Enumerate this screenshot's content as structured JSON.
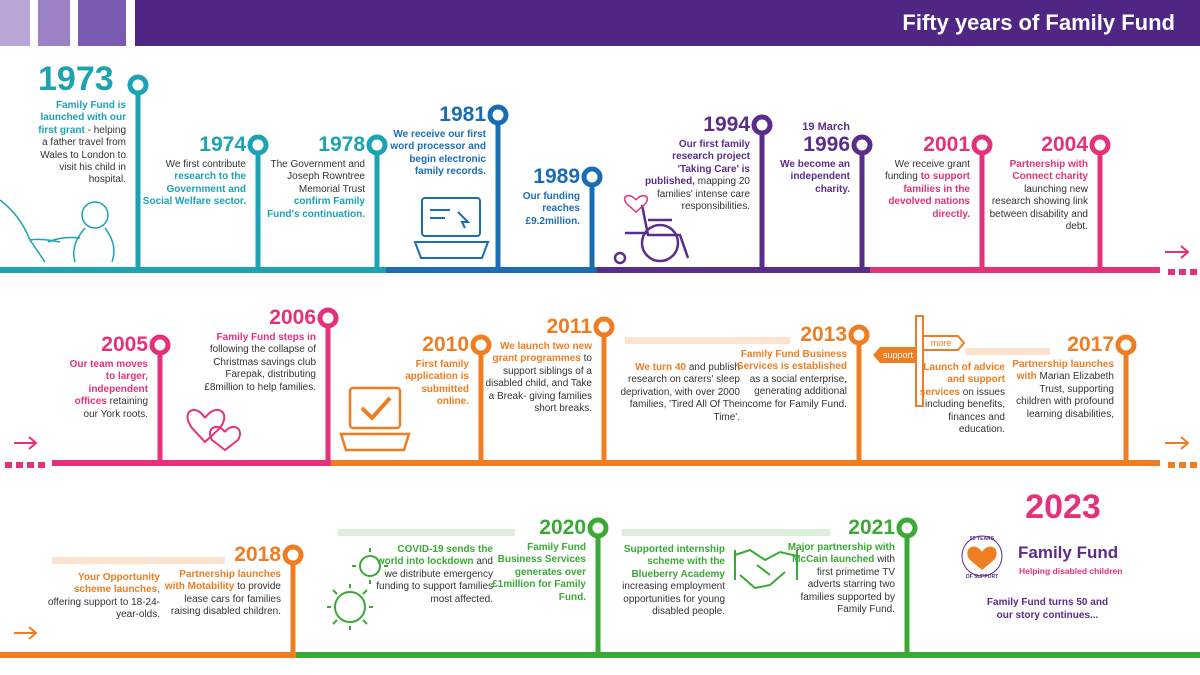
{
  "header": {
    "title": "Fifty years of Family Fund"
  },
  "events": [
    {
      "year": "1973",
      "color": "#1ba3b4",
      "parts": [
        {
          "text": "Family Fund is launched with our first grant",
          "strong": true
        },
        {
          "text": "- helping a father travel from Wales to London to visit his child in hospital.",
          "strong": false
        }
      ]
    },
    {
      "year": "1974",
      "color": "#1ba3b4",
      "parts": [
        {
          "text": "We first contribute",
          "strong": false
        },
        {
          "text": "research to the Government and Social Welfare sector.",
          "strong": true
        }
      ]
    },
    {
      "year": "1978",
      "color": "#1ba3b4",
      "parts": [
        {
          "text": "The Government and Joseph Rowntree Memorial Trust",
          "strong": false
        },
        {
          "text": "confirm Family Fund's continuation.",
          "strong": true
        }
      ]
    },
    {
      "year": "1981",
      "color": "#1b6db3",
      "parts": [
        {
          "text": "We receive our first word processor and begin electronic family records.",
          "strong": true
        }
      ]
    },
    {
      "year": "1989",
      "color": "#1b6db3",
      "parts": [
        {
          "text": "Our funding reaches £9.2million.",
          "strong": true
        }
      ]
    },
    {
      "year": "1994",
      "color": "#5a2d8c",
      "parts": [
        {
          "text": "Our first family research project 'Taking Care' is published,",
          "strong": true
        },
        {
          "text": "mapping 20 families' intense care responsibilities.",
          "strong": false
        }
      ]
    },
    {
      "year": "1996",
      "date": "19 March",
      "color": "#5a2d8c",
      "parts": [
        {
          "text": "We become an independent charity.",
          "strong": true
        }
      ]
    },
    {
      "year": "2001",
      "color": "#e5317a",
      "parts": [
        {
          "text": "We receive grant funding",
          "strong": false
        },
        {
          "text": "to support families in the devolved nations directly.",
          "strong": true
        }
      ]
    },
    {
      "year": "2004",
      "color": "#e5317a",
      "parts": [
        {
          "text": "Partnership with Connect charity",
          "strong": true
        },
        {
          "text": "launching new research showing link between disability and debt.",
          "strong": false
        }
      ]
    },
    {
      "year": "2005",
      "color": "#e5317a",
      "parts": [
        {
          "text": "Our team moves to larger, independent offices",
          "strong": true
        },
        {
          "text": "retaining our York roots.",
          "strong": false
        }
      ]
    },
    {
      "year": "2006",
      "color": "#e5317a",
      "parts": [
        {
          "text": "Family Fund steps in",
          "strong": true
        },
        {
          "text": "following the collapse of Christmas savings club Farepak, distributing £8million to help families.",
          "strong": false
        }
      ]
    },
    {
      "year": "2010",
      "color": "#ef7d22",
      "parts": [
        {
          "text": "First family application is submitted online.",
          "strong": true
        }
      ]
    },
    {
      "year": "2011",
      "color": "#ef7d22",
      "parts": [
        {
          "text": "We launch two new grant programmes",
          "strong": true
        },
        {
          "text": "to support siblings of a disabled child, and Take a Break- giving families short breaks.",
          "strong": false
        }
      ]
    },
    {
      "color": "#ef7d22",
      "parts": [
        {
          "text": "We turn 40",
          "strong": true
        },
        {
          "text": "and publish research on carers' sleep deprivation, with over 2000 families, 'Tired All Of The Time'.",
          "strong": false
        }
      ]
    },
    {
      "year": "2013",
      "color": "#ef7d22",
      "parts": [
        {
          "text": "Family Fund Business Services is established",
          "strong": true
        },
        {
          "text": "as a social enterprise, generating additional income for Family Fund.",
          "strong": false
        }
      ]
    },
    {
      "color": "#ef7d22",
      "parts": [
        {
          "text": "Launch of advice and support services",
          "strong": true
        },
        {
          "text": "on issues including benefits, finances and education.",
          "strong": false
        }
      ]
    },
    {
      "year": "2017",
      "color": "#ef7d22",
      "parts": [
        {
          "text": "Partnership launches with",
          "strong": true
        },
        {
          "text": "Marian Elizabeth Trust, supporting children with profound learning disabilities,",
          "strong": false
        }
      ]
    },
    {
      "color": "#ef7d22",
      "parts": [
        {
          "text": "Your Opportunity scheme launches,",
          "strong": true
        },
        {
          "text": "offering support to 18-24-year-olds.",
          "strong": false
        }
      ]
    },
    {
      "year": "2018",
      "color": "#ef7d22",
      "parts": [
        {
          "text": "Partnership launches with Motability",
          "strong": true
        },
        {
          "text": "to provide lease cars for families raising disabled children.",
          "strong": false
        }
      ]
    },
    {
      "color": "#3aa935",
      "parts": [
        {
          "text": "COVID-19 sends the world into lockdown",
          "strong": true
        },
        {
          "text": "and we distribute emergency funding to support families most affected.",
          "strong": false
        }
      ]
    },
    {
      "year": "2020",
      "color": "#3aa935",
      "parts": [
        {
          "text": "Family Fund Business Services generates over £1million for Family Fund.",
          "strong": true
        }
      ]
    },
    {
      "color": "#3aa935",
      "parts": [
        {
          "text": "Supported internship scheme with the Blueberry Academy",
          "strong": true
        },
        {
          "text": "increasing employment opportunities for young disabled people.",
          "strong": false
        }
      ]
    },
    {
      "year": "2021",
      "color": "#3aa935",
      "parts": [
        {
          "text": "Major partnership with McCain launched",
          "strong": true
        },
        {
          "text": "with first primetime TV adverts starring two families supported by Family Fund.",
          "strong": false
        }
      ]
    }
  ],
  "signpost": {
    "left": "support",
    "right": "more"
  },
  "finale": {
    "year": "2023",
    "logo_name": "Family Fund",
    "logo_tagline": "Helping disabled children",
    "badge_top": "50 YEARS",
    "badge_bottom": "OF SUPPORT",
    "text": "Family Fund turns 50 and our story continues..."
  }
}
